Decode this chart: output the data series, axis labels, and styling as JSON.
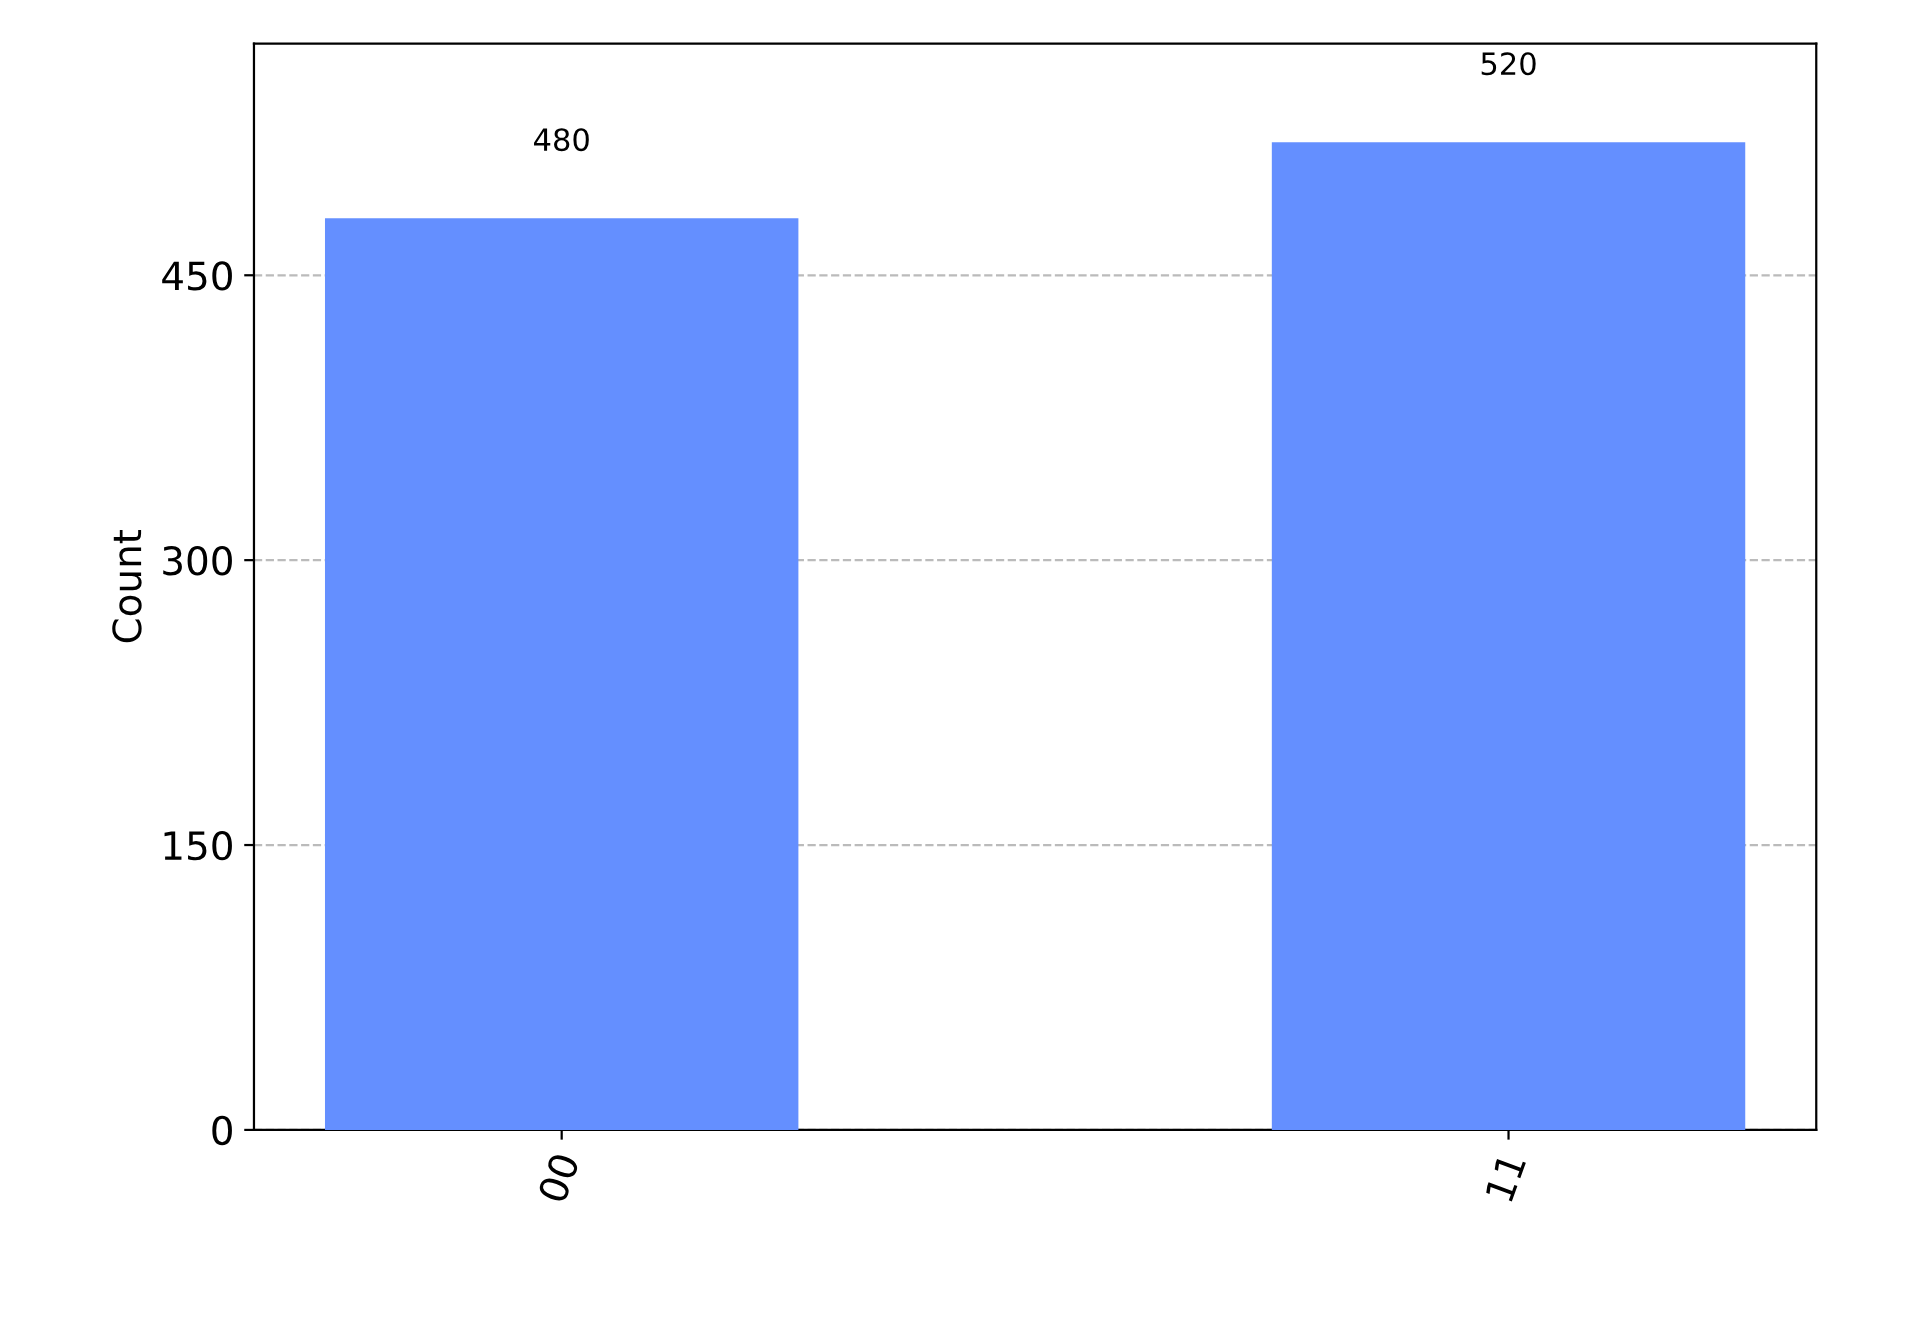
{
  "chart_data": {
    "type": "bar",
    "ylabel": "Count",
    "categories": [
      "00",
      "11"
    ],
    "values": [
      480,
      520
    ],
    "color": "#648fff",
    "ylim": [
      0,
      572
    ],
    "yticks": [
      0,
      150,
      300,
      450
    ],
    "grid": "y",
    "data_labels": true
  }
}
